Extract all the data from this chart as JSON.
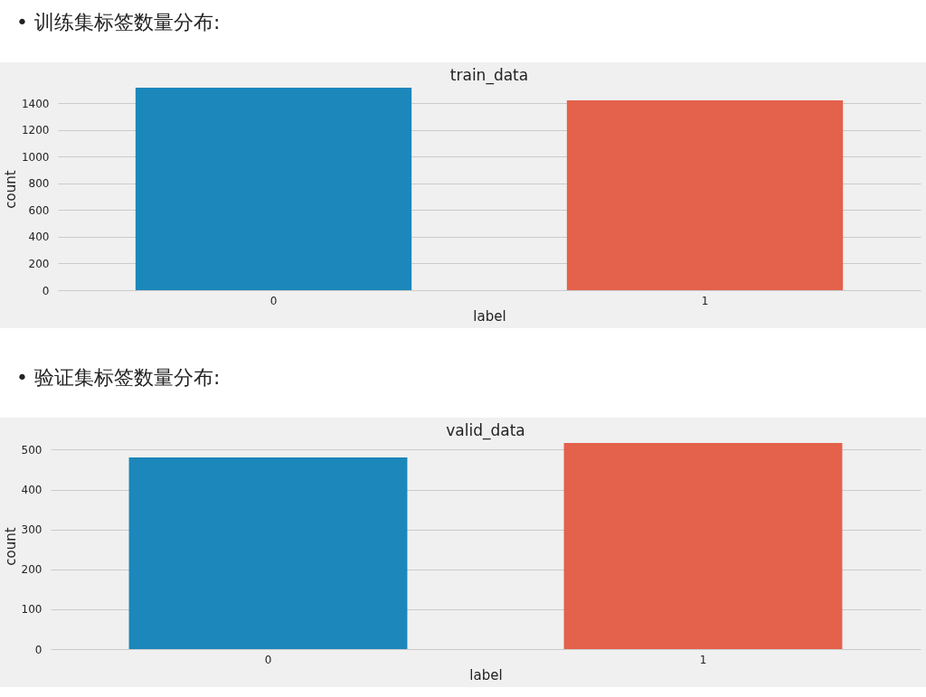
{
  "chart_data": [
    {
      "type": "bar",
      "title": "train_data",
      "annotations": [
        "• 训练集标签数量分布:"
      ],
      "xlabel": "label",
      "ylabel": "count",
      "categories": [
        "0",
        "1"
      ],
      "values": [
        1515,
        1420
      ],
      "colors": [
        "#1c87bb",
        "#e4614b"
      ],
      "ylim": [
        0,
        1515
      ],
      "yticks": [
        0,
        200,
        400,
        600,
        800,
        1000,
        1200,
        1400
      ],
      "grid": "y"
    },
    {
      "type": "bar",
      "title": "valid_data",
      "annotations": [
        "• 验证集标签数量分布:"
      ],
      "xlabel": "label",
      "ylabel": "count",
      "categories": [
        "0",
        "1"
      ],
      "values": [
        481,
        517
      ],
      "colors": [
        "#1c87bb",
        "#e4614b"
      ],
      "ylim": [
        0,
        517
      ],
      "yticks": [
        0,
        100,
        200,
        300,
        400,
        500
      ],
      "grid": "y"
    }
  ]
}
